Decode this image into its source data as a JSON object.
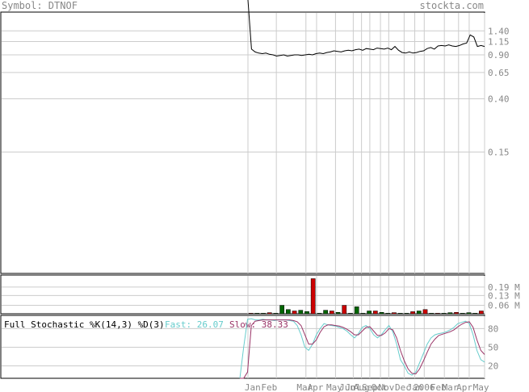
{
  "header": {
    "symbol_label": "Symbol: DTNOF",
    "source": "stockta.com"
  },
  "colors": {
    "frame": "#000000",
    "grid": "#cccccc",
    "price": "#000000",
    "vol_up": "#006600",
    "vol_down": "#cc0000",
    "fast": "#66cccc",
    "slow": "#993366",
    "label": "#888888"
  },
  "chart_data": [
    {
      "type": "line",
      "name": "price",
      "scale": "log",
      "y_ticks": [
        "1.40",
        "1.15",
        "0.90",
        "0.65",
        "0.40",
        "0.15"
      ],
      "y_tick_values": [
        1.4,
        1.15,
        0.9,
        0.65,
        0.4,
        0.15
      ],
      "ylim": [
        0.016,
        1.95
      ],
      "values": [
        8.0,
        1.0,
        0.95,
        0.93,
        0.92,
        0.93,
        0.91,
        0.9,
        0.88,
        0.89,
        0.9,
        0.88,
        0.89,
        0.9,
        0.9,
        0.89,
        0.9,
        0.91,
        0.9,
        0.92,
        0.93,
        0.92,
        0.94,
        0.95,
        0.97,
        0.96,
        0.95,
        0.97,
        0.98,
        0.97,
        0.99,
        1.0,
        0.98,
        1.01,
        1.0,
        0.99,
        1.02,
        1.01,
        1.0,
        1.02,
        0.99,
        1.05,
        0.98,
        0.94,
        0.93,
        0.95,
        0.93,
        0.94,
        0.96,
        0.97,
        1.01,
        1.03,
        1.0,
        1.06,
        1.07,
        1.06,
        1.08,
        1.06,
        1.05,
        1.07,
        1.1,
        1.12,
        1.3,
        1.25,
        1.05,
        1.07,
        1.05
      ]
    },
    {
      "type": "bar",
      "name": "volume",
      "y_ticks": [
        "0.19 M",
        "0.13 M",
        "0.06 M"
      ],
      "y_tick_values": [
        0.19,
        0.13,
        0.06
      ],
      "ylim": [
        0,
        0.27
      ],
      "bars": [
        {
          "v": 0.004,
          "c": "down"
        },
        {
          "v": 0.004,
          "c": "up"
        },
        {
          "v": 0.004,
          "c": "up"
        },
        {
          "v": 0.008,
          "c": "down"
        },
        {
          "v": 0.004,
          "c": "up"
        },
        {
          "v": 0.06,
          "c": "up"
        },
        {
          "v": 0.03,
          "c": "up"
        },
        {
          "v": 0.02,
          "c": "down"
        },
        {
          "v": 0.025,
          "c": "up"
        },
        {
          "v": 0.016,
          "c": "up"
        },
        {
          "v": 0.25,
          "c": "down"
        },
        {
          "v": 0.004,
          "c": "up"
        },
        {
          "v": 0.025,
          "c": "up"
        },
        {
          "v": 0.02,
          "c": "down"
        },
        {
          "v": 0.01,
          "c": "up"
        },
        {
          "v": 0.06,
          "c": "down"
        },
        {
          "v": 0.004,
          "c": "up"
        },
        {
          "v": 0.05,
          "c": "up"
        },
        {
          "v": 0.004,
          "c": "up"
        },
        {
          "v": 0.02,
          "c": "up"
        },
        {
          "v": 0.02,
          "c": "down"
        },
        {
          "v": 0.01,
          "c": "up"
        },
        {
          "v": 0.004,
          "c": "up"
        },
        {
          "v": 0.008,
          "c": "down"
        },
        {
          "v": 0.004,
          "c": "up"
        },
        {
          "v": 0.004,
          "c": "up"
        },
        {
          "v": 0.015,
          "c": "down"
        },
        {
          "v": 0.02,
          "c": "up"
        },
        {
          "v": 0.03,
          "c": "down"
        },
        {
          "v": 0.004,
          "c": "up"
        },
        {
          "v": 0.004,
          "c": "down"
        },
        {
          "v": 0.004,
          "c": "up"
        },
        {
          "v": 0.008,
          "c": "up"
        },
        {
          "v": 0.01,
          "c": "down"
        },
        {
          "v": 0.004,
          "c": "up"
        },
        {
          "v": 0.008,
          "c": "up"
        },
        {
          "v": 0.004,
          "c": "up"
        },
        {
          "v": 0.02,
          "c": "down"
        }
      ]
    },
    {
      "type": "line",
      "name": "stochastic",
      "title": "Full Stochastic %K(14,3) %D(3)",
      "fast_label": "Fast: 26.07",
      "slow_label": "Slow: 38.33",
      "y_ticks": [
        "80",
        "50",
        "20"
      ],
      "y_tick_values": [
        80,
        50,
        20
      ],
      "ylim": [
        0,
        100
      ],
      "fast": [
        0,
        50,
        95,
        96,
        94,
        94,
        95,
        94,
        94,
        93,
        94,
        94,
        94,
        93,
        92,
        85,
        70,
        50,
        45,
        55,
        70,
        80,
        88,
        86,
        85,
        84,
        82,
        80,
        76,
        70,
        65,
        72,
        82,
        85,
        80,
        70,
        65,
        70,
        78,
        85,
        75,
        55,
        30,
        20,
        8,
        5,
        10,
        25,
        40,
        55,
        65,
        70,
        72,
        73,
        75,
        78,
        82,
        88,
        90,
        92,
        88,
        70,
        45,
        30,
        26.07
      ],
      "slow": [
        0,
        0,
        10,
        85,
        92,
        93,
        94,
        94,
        94,
        94,
        94,
        94,
        94,
        94,
        93,
        91,
        85,
        70,
        55,
        55,
        62,
        74,
        83,
        86,
        86,
        85,
        84,
        82,
        79,
        75,
        70,
        70,
        76,
        82,
        83,
        76,
        69,
        69,
        73,
        80,
        78,
        65,
        45,
        28,
        15,
        8,
        7,
        15,
        28,
        42,
        55,
        63,
        69,
        71,
        73,
        75,
        78,
        83,
        87,
        90,
        91,
        82,
        62,
        45,
        38.33
      ],
      "x_labels": [
        {
          "t": "Jan",
          "i": 0.02
        },
        {
          "t": "Feb",
          "i": 0.09
        },
        {
          "t": "Mar",
          "i": 0.24
        },
        {
          "t": "Apr",
          "i": 0.285
        },
        {
          "t": "May",
          "i": 0.365
        },
        {
          "t": "Jun",
          "i": 0.42
        },
        {
          "t": "Jul",
          "i": 0.445
        },
        {
          "t": "Aug",
          "i": 0.48
        },
        {
          "t": "Sep",
          "i": 0.515
        },
        {
          "t": "Oct",
          "i": 0.555
        },
        {
          "t": "Nov",
          "i": 0.585
        },
        {
          "t": "Dec",
          "i": 0.655
        },
        {
          "t": "Jan",
          "i": 0.705
        },
        {
          "t": "2006",
          "i": 0.745
        },
        {
          "t": "Feb",
          "i": 0.805
        },
        {
          "t": "Mar",
          "i": 0.855
        },
        {
          "t": "Apr",
          "i": 0.915
        },
        {
          "t": "May",
          "i": 0.985
        }
      ],
      "v_grid": [
        0.0,
        0.12,
        0.245,
        0.29,
        0.37,
        0.445,
        0.48,
        0.515,
        0.56,
        0.595,
        0.66,
        0.705,
        0.745,
        0.83,
        0.89,
        0.935,
        1.0
      ]
    }
  ]
}
